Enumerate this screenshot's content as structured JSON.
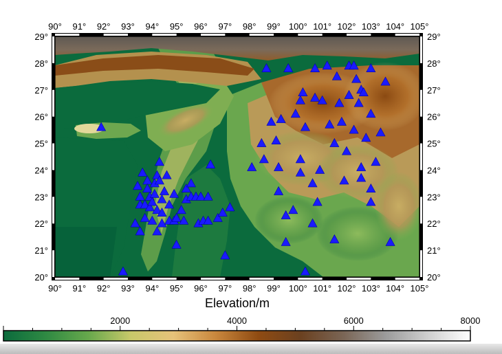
{
  "map": {
    "lon_range": [
      90,
      105
    ],
    "lat_range": [
      20,
      29
    ],
    "lon_ticks": [
      "90°",
      "91°",
      "92°",
      "93°",
      "94°",
      "95°",
      "96°",
      "97°",
      "98°",
      "99°",
      "100°",
      "101°",
      "102°",
      "103°",
      "104°",
      "105°"
    ],
    "lat_ticks": [
      "20°",
      "21°",
      "22°",
      "23°",
      "24°",
      "25°",
      "26°",
      "27°",
      "28°",
      "29°"
    ],
    "colors": {
      "marker": "#1a1aff",
      "frame": "#000000"
    },
    "stations": [
      [
        91.9,
        25.6
      ],
      [
        92.8,
        20.2
      ],
      [
        93.3,
        22.0
      ],
      [
        93.4,
        23.4
      ],
      [
        93.5,
        23.0
      ],
      [
        93.5,
        22.7
      ],
      [
        93.5,
        21.7
      ],
      [
        93.6,
        23.9
      ],
      [
        93.7,
        22.7
      ],
      [
        93.7,
        22.2
      ],
      [
        93.8,
        23.6
      ],
      [
        93.8,
        23.3
      ],
      [
        93.9,
        23.0
      ],
      [
        93.9,
        22.6
      ],
      [
        94.0,
        22.8
      ],
      [
        94.0,
        22.1
      ],
      [
        94.1,
        23.5
      ],
      [
        94.1,
        23.1
      ],
      [
        94.2,
        23.8
      ],
      [
        94.2,
        22.5
      ],
      [
        94.2,
        21.7
      ],
      [
        94.3,
        24.3
      ],
      [
        94.3,
        23.6
      ],
      [
        94.4,
        22.9
      ],
      [
        94.4,
        22.4
      ],
      [
        94.4,
        22.0
      ],
      [
        94.5,
        23.2
      ],
      [
        94.6,
        23.8
      ],
      [
        94.7,
        22.7
      ],
      [
        94.7,
        22.1
      ],
      [
        94.9,
        23.1
      ],
      [
        94.9,
        22.1
      ],
      [
        95.0,
        22.2
      ],
      [
        95.0,
        21.2
      ],
      [
        95.2,
        22.5
      ],
      [
        95.3,
        22.1
      ],
      [
        95.4,
        22.9
      ],
      [
        95.4,
        23.3
      ],
      [
        95.6,
        23.5
      ],
      [
        95.6,
        23.0
      ],
      [
        95.8,
        23.0
      ],
      [
        95.9,
        22.0
      ],
      [
        96.0,
        23.0
      ],
      [
        96.1,
        22.1
      ],
      [
        96.3,
        22.1
      ],
      [
        96.3,
        23.0
      ],
      [
        96.4,
        24.2
      ],
      [
        96.7,
        22.2
      ],
      [
        96.9,
        22.4
      ],
      [
        97.0,
        20.8
      ],
      [
        97.2,
        22.6
      ],
      [
        98.1,
        24.1
      ],
      [
        98.5,
        25.0
      ],
      [
        98.6,
        24.4
      ],
      [
        98.7,
        27.8
      ],
      [
        98.9,
        25.8
      ],
      [
        99.1,
        25.1
      ],
      [
        99.2,
        24.1
      ],
      [
        99.2,
        23.2
      ],
      [
        99.3,
        25.9
      ],
      [
        99.5,
        22.3
      ],
      [
        99.5,
        21.3
      ],
      [
        99.6,
        27.8
      ],
      [
        99.8,
        22.5
      ],
      [
        99.9,
        26.1
      ],
      [
        100.1,
        26.6
      ],
      [
        100.1,
        24.4
      ],
      [
        100.1,
        23.9
      ],
      [
        100.2,
        26.9
      ],
      [
        100.3,
        25.6
      ],
      [
        100.3,
        20.2
      ],
      [
        100.6,
        23.5
      ],
      [
        100.6,
        22.0
      ],
      [
        100.7,
        26.7
      ],
      [
        100.7,
        27.8
      ],
      [
        100.8,
        22.8
      ],
      [
        100.9,
        24.0
      ],
      [
        101.0,
        26.6
      ],
      [
        101.2,
        27.9
      ],
      [
        101.3,
        25.7
      ],
      [
        101.5,
        25.0
      ],
      [
        101.5,
        21.4
      ],
      [
        101.6,
        27.5
      ],
      [
        101.7,
        26.5
      ],
      [
        101.8,
        25.8
      ],
      [
        101.9,
        23.6
      ],
      [
        102.0,
        24.7
      ],
      [
        102.1,
        27.9
      ],
      [
        102.1,
        26.8
      ],
      [
        102.3,
        27.9
      ],
      [
        102.3,
        25.5
      ],
      [
        102.4,
        27.4
      ],
      [
        102.5,
        26.5
      ],
      [
        102.6,
        24.1
      ],
      [
        102.6,
        23.7
      ],
      [
        102.6,
        27.0
      ],
      [
        102.7,
        26.9
      ],
      [
        102.8,
        25.2
      ],
      [
        103.0,
        27.8
      ],
      [
        103.0,
        26.1
      ],
      [
        103.0,
        23.3
      ],
      [
        103.0,
        22.8
      ],
      [
        103.2,
        24.3
      ],
      [
        103.4,
        25.4
      ],
      [
        103.6,
        27.3
      ],
      [
        103.8,
        21.3
      ]
    ]
  },
  "colorbar": {
    "title": "Elevation/m",
    "range": [
      0,
      8000
    ],
    "tick_labels": [
      "2000",
      "4000",
      "6000",
      "8000"
    ],
    "tick_values": [
      2000,
      4000,
      6000,
      8000
    ],
    "colors": [
      "#0b6b3d",
      "#2f8a43",
      "#67a84c",
      "#c8c86a",
      "#e6c27a",
      "#c9873d",
      "#8f4b12",
      "#6b4120",
      "#7a6555",
      "#9b9b9b",
      "#cfcfcf",
      "#ffffff"
    ]
  }
}
